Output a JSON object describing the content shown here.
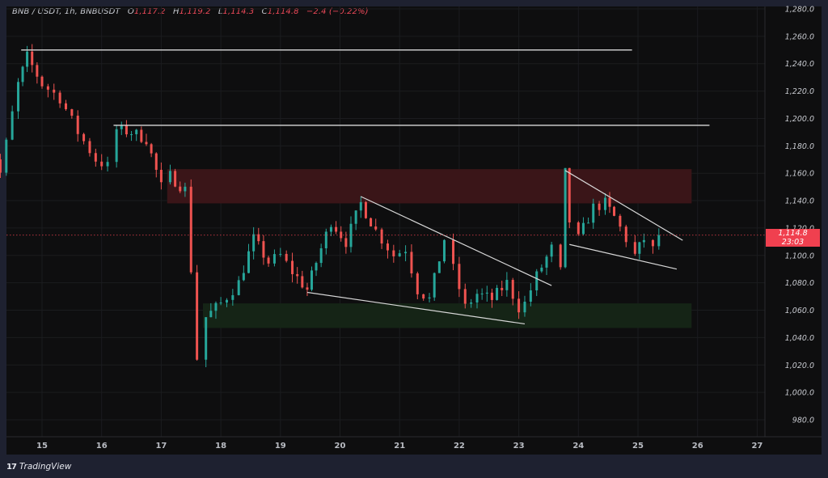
{
  "header": {
    "symbol": "BNB / USDT, 1h, BNBUSDT",
    "open_label": "O",
    "open": "1,117.2",
    "high_label": "H",
    "high": "1,119.2",
    "low_label": "L",
    "low": "1,114.3",
    "close_label": "C",
    "close": "1,114.8",
    "change": "−2.4 (−0.22%)"
  },
  "price_tag": {
    "price": "1,114.8",
    "countdown": "23:03",
    "color": "#f0404f"
  },
  "branding": {
    "logo": "17",
    "name": "TradingView"
  },
  "colors": {
    "up": "#26a69a",
    "down": "#ef5350",
    "supply_zone": "#3a1518",
    "demand_zone": "#152416",
    "lines": "#d8d8d8"
  },
  "chart_data": {
    "type": "candlestick",
    "title": "BNB / USDT, 1h, BNBUSDT",
    "xlabel": "",
    "ylabel": "",
    "ylim": [
      975,
      1282
    ],
    "y_ticks": [
      "1,280.0",
      "1,260.0",
      "1,240.0",
      "1,220.0",
      "1,200.0",
      "1,180.0",
      "1,160.0",
      "1,140.0",
      "1,120.0",
      "1,100.0",
      "1,080.0",
      "1,060.0",
      "1,040.0",
      "1,020.0",
      "1,000.0",
      "980.0"
    ],
    "x_ticks": [
      "15",
      "16",
      "17",
      "18",
      "19",
      "20",
      "21",
      "22",
      "23",
      "24",
      "25",
      "26",
      "27"
    ],
    "last_price": 1114.8,
    "path": [
      [
        14.0,
        1195
      ],
      [
        14.3,
        1160
      ],
      [
        14.6,
        1225
      ],
      [
        14.75,
        1245
      ],
      [
        15.0,
        1225
      ],
      [
        15.3,
        1215
      ],
      [
        15.6,
        1190
      ],
      [
        15.9,
        1170
      ],
      [
        16.1,
        1165
      ],
      [
        16.25,
        1192
      ],
      [
        16.5,
        1190
      ],
      [
        16.75,
        1185
      ],
      [
        17.0,
        1150
      ],
      [
        17.15,
        1158
      ],
      [
        17.4,
        1148
      ],
      [
        17.5,
        1090
      ],
      [
        17.6,
        1025
      ],
      [
        17.75,
        1055
      ],
      [
        18.0,
        1065
      ],
      [
        18.3,
        1080
      ],
      [
        18.55,
        1112
      ],
      [
        18.8,
        1095
      ],
      [
        19.0,
        1100
      ],
      [
        19.2,
        1088
      ],
      [
        19.45,
        1075
      ],
      [
        19.6,
        1095
      ],
      [
        19.85,
        1125
      ],
      [
        20.1,
        1110
      ],
      [
        20.35,
        1138
      ],
      [
        20.6,
        1118
      ],
      [
        20.9,
        1100
      ],
      [
        21.1,
        1105
      ],
      [
        21.3,
        1075
      ],
      [
        21.5,
        1068
      ],
      [
        21.75,
        1112
      ],
      [
        21.9,
        1090
      ],
      [
        22.1,
        1062
      ],
      [
        22.3,
        1072
      ],
      [
        22.55,
        1068
      ],
      [
        22.8,
        1080
      ],
      [
        23.0,
        1062
      ],
      [
        23.1,
        1065
      ],
      [
        23.3,
        1085
      ],
      [
        23.55,
        1105
      ],
      [
        23.7,
        1088
      ],
      [
        23.78,
        1160
      ],
      [
        23.85,
        1125
      ],
      [
        24.0,
        1112
      ],
      [
        24.25,
        1135
      ],
      [
        24.45,
        1138
      ],
      [
        24.6,
        1128
      ],
      [
        24.8,
        1112
      ],
      [
        24.95,
        1100
      ],
      [
        25.1,
        1112
      ],
      [
        25.25,
        1104
      ],
      [
        25.35,
        1114.8
      ]
    ],
    "annotations": {
      "horizontal_lines": [
        {
          "price": 1250,
          "from_day": 14.65,
          "to_day": 24.9
        },
        {
          "price": 1195,
          "from_day": 16.2,
          "to_day": 26.2
        }
      ],
      "supply_zone": {
        "from_day": 17.1,
        "to_day": 25.9,
        "top": 1163,
        "bottom": 1138
      },
      "demand_zone": {
        "from_day": 17.7,
        "to_day": 25.9,
        "top": 1065,
        "bottom": 1047
      },
      "trendlines": [
        {
          "from": [
            20.35,
            1143
          ],
          "to": [
            23.55,
            1078
          ]
        },
        {
          "from": [
            19.45,
            1073
          ],
          "to": [
            23.1,
            1050
          ]
        },
        {
          "from": [
            23.78,
            1162
          ],
          "to": [
            25.75,
            1111
          ]
        },
        {
          "from": [
            23.85,
            1108
          ],
          "to": [
            25.65,
            1090
          ]
        }
      ]
    }
  }
}
